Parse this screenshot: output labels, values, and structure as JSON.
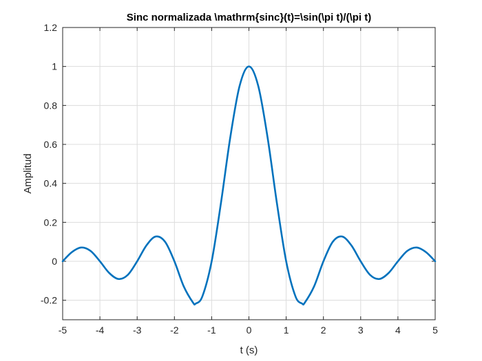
{
  "chart_data": {
    "type": "line",
    "title": "Sinc normalizada \\mathrm{sinc}(t)=\\sin(\\pi t)/(\\pi t)",
    "xlabel": "t (s)",
    "ylabel": "Amplitud",
    "xlim": [
      -5,
      5
    ],
    "ylim": [
      -0.3,
      1.2
    ],
    "xticks": [
      -5,
      -4,
      -3,
      -2,
      -1,
      0,
      1,
      2,
      3,
      4,
      5
    ],
    "xtick_labels": [
      "-5",
      "-4",
      "-3",
      "-2",
      "-1",
      "0",
      "1",
      "2",
      "3",
      "4",
      "5"
    ],
    "yticks": [
      -0.2,
      0,
      0.2,
      0.4,
      0.6,
      0.8,
      1,
      1.2
    ],
    "ytick_labels": [
      "-0.2",
      "0",
      "0.2",
      "0.4",
      "0.6",
      "0.8",
      "1",
      "1.2"
    ],
    "grid": true,
    "series": [
      {
        "color": "#0072BD",
        "x": [
          -5,
          -4.75,
          -4.5,
          -4.25,
          -4,
          -3.75,
          -3.5,
          -3.25,
          -3,
          -2.75,
          -2.5,
          -2.25,
          -2,
          -1.75,
          -1.5,
          -1.43,
          -1.25,
          -1,
          -0.75,
          -0.5,
          -0.25,
          0,
          0.25,
          0.5,
          0.75,
          1,
          1.25,
          1.43,
          1.5,
          1.75,
          2,
          2.25,
          2.5,
          2.75,
          3,
          3.25,
          3.5,
          3.75,
          4,
          4.25,
          4.5,
          4.75,
          5
        ],
        "y": [
          0,
          0.0474,
          0.0707,
          0.053,
          0,
          -0.06,
          -0.0909,
          -0.0693,
          0,
          0.0818,
          0.1273,
          0.1,
          0,
          -0.1286,
          -0.2122,
          -0.2172,
          -0.1801,
          0,
          0.3001,
          0.6366,
          0.9003,
          1,
          0.9003,
          0.6366,
          0.3001,
          0,
          -0.1801,
          -0.2172,
          -0.2122,
          -0.1286,
          0,
          0.1,
          0.1273,
          0.0818,
          0,
          -0.0693,
          -0.0909,
          -0.06,
          0,
          0.053,
          0.0707,
          0.0474,
          0
        ]
      }
    ]
  }
}
